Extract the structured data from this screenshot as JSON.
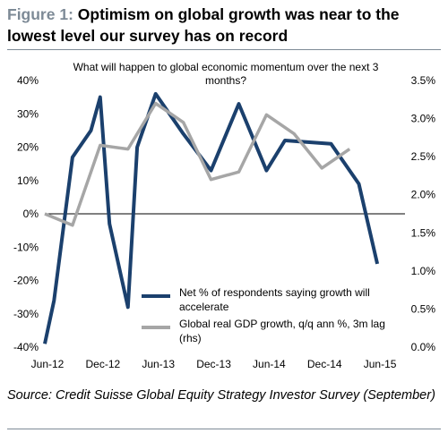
{
  "header": {
    "figure_label": "Figure 1: ",
    "title": "Optimism on global growth was near to the lowest level our survey has on record"
  },
  "footer": {
    "source": "Source: Credit Suisse Global Equity Strategy Investor Survey (September)"
  },
  "colors": {
    "series1": "#1b406d",
    "series2": "#a6a6a6",
    "figure_label": "#7d8a96"
  },
  "chart_data": {
    "type": "line",
    "title": "What will happen to global economic momentum over the next 3 months?",
    "title_lines": [
      "What will happen to global economic momentum over the next 3",
      "months?"
    ],
    "x_tick_labels": [
      "Jun-12",
      "Dec-12",
      "Jun-13",
      "Dec-13",
      "Jun-14",
      "Dec-14",
      "Jun-15"
    ],
    "x_range": [
      "2012-06",
      "2015-09"
    ],
    "y_left": {
      "ticks": [
        "40%",
        "30%",
        "20%",
        "10%",
        "0%",
        "-10%",
        "-20%",
        "-30%",
        "-40%"
      ],
      "range": [
        -40,
        40
      ]
    },
    "y_right": {
      "ticks": [
        "3.5%",
        "3.0%",
        "2.5%",
        "2.0%",
        "1.5%",
        "1.0%",
        "0.5%",
        "0.0%"
      ],
      "range": [
        0,
        3.5
      ]
    },
    "zero_line": true,
    "grid": false,
    "legend_position": "bottom-center",
    "series": [
      {
        "name": "Net % of respondents saying growth will accelerate",
        "legend_lines": [
          "Net % of respondents saying growth will",
          "accelerate"
        ],
        "axis": "left",
        "color": "#1b406d",
        "points": [
          [
            "2012-06",
            -39
          ],
          [
            "2012-07",
            -26
          ],
          [
            "2012-09",
            17
          ],
          [
            "2012-11",
            25
          ],
          [
            "2012-12",
            35
          ],
          [
            "2013-01",
            -3
          ],
          [
            "2013-03",
            -28
          ],
          [
            "2013-04",
            20
          ],
          [
            "2013-06",
            36
          ],
          [
            "2013-09",
            24
          ],
          [
            "2013-12",
            13
          ],
          [
            "2014-03",
            33
          ],
          [
            "2014-06",
            13
          ],
          [
            "2014-08",
            22
          ],
          [
            "2015-01",
            21
          ],
          [
            "2015-04",
            9
          ],
          [
            "2015-06",
            -15
          ]
        ]
      },
      {
        "name": "Global real GDP growth, q/q ann %, 3m lag (rhs)",
        "legend_lines": [
          "Global real GDP growth, q/q ann %, 3m lag",
          "(rhs)"
        ],
        "axis": "right",
        "color": "#a6a6a6",
        "points": [
          [
            "2012-06",
            1.75
          ],
          [
            "2012-09",
            1.6
          ],
          [
            "2012-12",
            2.65
          ],
          [
            "2013-03",
            2.6
          ],
          [
            "2013-06",
            3.2
          ],
          [
            "2013-09",
            2.95
          ],
          [
            "2013-12",
            2.2
          ],
          [
            "2014-03",
            2.3
          ],
          [
            "2014-06",
            3.05
          ],
          [
            "2014-09",
            2.8
          ],
          [
            "2014-12",
            2.35
          ],
          [
            "2015-03",
            2.6
          ]
        ]
      }
    ]
  }
}
